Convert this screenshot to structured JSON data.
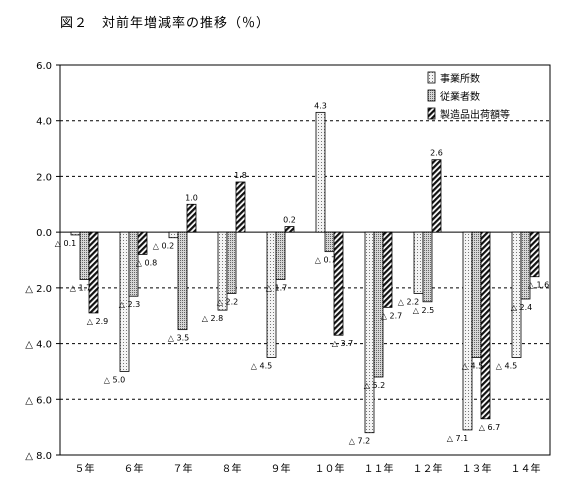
{
  "title": "図２　対前年増減率の推移（％）",
  "chart_data": {
    "type": "bar",
    "title": "図２　対前年増減率の推移（％）",
    "categories": [
      "５年",
      "６年",
      "７年",
      "８年",
      "９年",
      "１０年",
      "１１年",
      "１２年",
      "１３年",
      "１４年"
    ],
    "series": [
      {
        "name": "事業所数",
        "values": [
          -0.1,
          -5.0,
          -0.2,
          -2.8,
          -4.5,
          4.3,
          -7.2,
          -2.2,
          -7.1,
          -4.5
        ]
      },
      {
        "name": "従業者数",
        "values": [
          -1.7,
          -2.3,
          -3.5,
          -2.2,
          -1.7,
          -0.7,
          -5.2,
          -2.5,
          -4.5,
          -2.4
        ]
      },
      {
        "name": "製造品出荷額等",
        "values": [
          -2.9,
          -0.8,
          1.0,
          1.8,
          0.2,
          -3.7,
          -2.7,
          2.6,
          -6.7,
          -1.6
        ]
      }
    ],
    "value_labels": [
      [
        "△ 0.1",
        "△ 5.0",
        "△ 0.2",
        "△ 2.8",
        "△ 4.5",
        "4.3",
        "△ 7.2",
        "△ 2.2",
        "△ 7.1",
        "△ 4.5"
      ],
      [
        "△ 1.7",
        "△ 2.3",
        "△ 3.5",
        "△ 2.2",
        "△ 1.7",
        "△ 0.7",
        "△ 5.2",
        "△ 2.5",
        "△ 4.5",
        "△ 2.4"
      ],
      [
        "△ 2.9",
        "△ 0.8",
        "1.0",
        "1.8",
        "0.2",
        "△ 3.7",
        "△ 2.7",
        "2.6",
        "△ 6.7",
        "△ 1.6"
      ]
    ],
    "ylim": [
      -8.0,
      6.0
    ],
    "yticks": [
      6.0,
      4.0,
      2.0,
      0.0,
      -2.0,
      -4.0,
      -6.0,
      -8.0
    ],
    "ytick_labels": [
      "6.0",
      "4.0",
      "2.0",
      "0.0",
      "△ 2.0",
      "△ 4.0",
      "△ 6.0",
      "△ 8.0"
    ],
    "grid": true,
    "legend_position": "top-right",
    "colors": {
      "series0": "#f2f2f2",
      "series1": "#b4b4b4",
      "series2": "#5a5a5a"
    }
  }
}
